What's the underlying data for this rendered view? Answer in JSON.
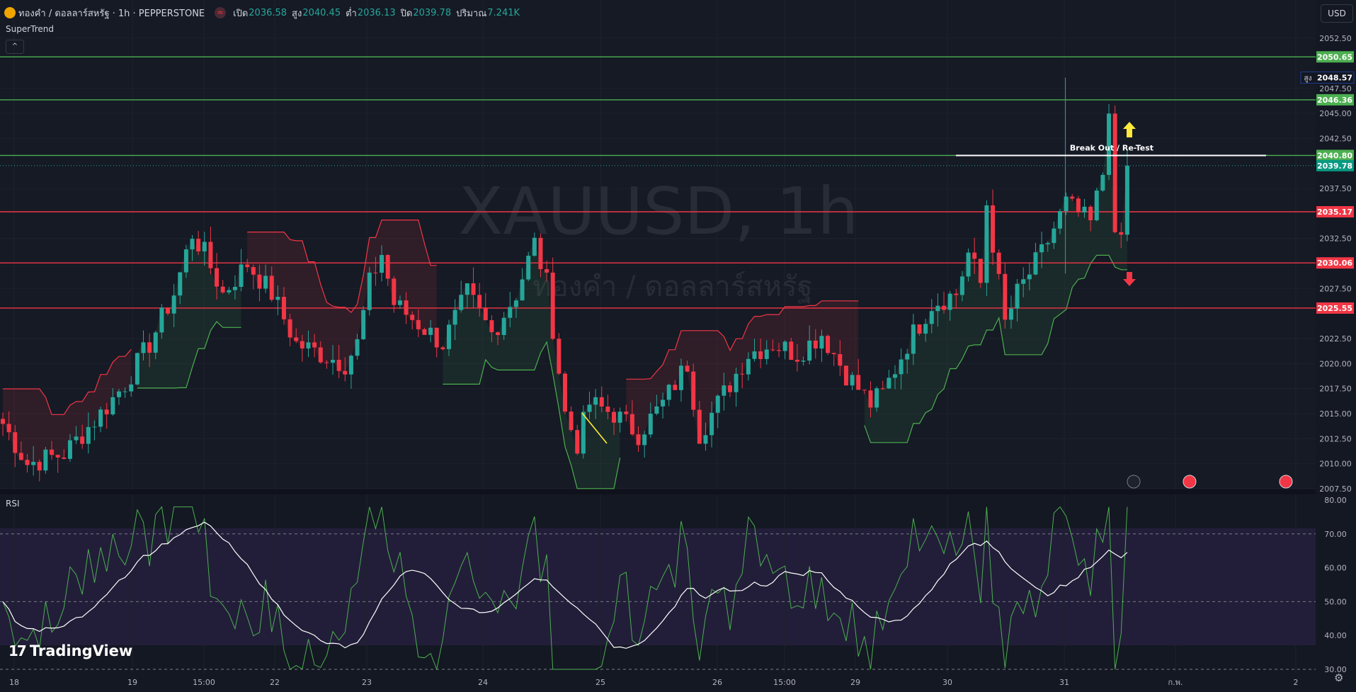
{
  "header": {
    "title": "ทองคำ / ดอลลาร์สหรัฐ · 1h · PEPPERSTONE",
    "wave_icon": "≈",
    "ohlc": [
      {
        "label": "เปิด",
        "value": "2036.58"
      },
      {
        "label": "สูง",
        "value": "2040.45"
      },
      {
        "label": "ต่ำ",
        "value": "2036.13"
      },
      {
        "label": "ปิด",
        "value": "2039.78"
      },
      {
        "label": "ปริมาณ",
        "value": "7.241K"
      }
    ]
  },
  "indicator_label": "SuperTrend",
  "collapse_icon": "^",
  "rsi_label": "RSI",
  "currency": "USD",
  "watermark": {
    "line1": "XAUUSD, 1h",
    "line2": "ทองคำ / ดอลลาร์สหรัฐ"
  },
  "logo": {
    "mark": "17",
    "text": "TradingView"
  },
  "settings_icon": "⚙",
  "colors": {
    "bg": "#141823",
    "up": "#26a69a",
    "down": "#f23645",
    "support": "#4caf50",
    "resistance": "#f23645",
    "annotation": "#ffffff",
    "arrow_up": "#ffeb3b"
  },
  "chart_data": {
    "type": "candlestick",
    "symbol": "XAUUSD",
    "timeframe": "1h",
    "y_ticks": [
      "2052.50",
      "2047.50",
      "2045.00",
      "2042.50",
      "2037.50",
      "2032.50",
      "2027.50",
      "2022.50",
      "2020.00",
      "2017.50",
      "2015.00",
      "2012.50",
      "2010.00",
      "2007.50"
    ],
    "ylim": [
      2007.5,
      2053.5
    ],
    "x_ticks": [
      "18",
      "19",
      "15:00",
      "22",
      "23",
      "24",
      "25",
      "26",
      "15:00",
      "29",
      "30",
      "31",
      "ก.พ.",
      "2"
    ],
    "horizontal_levels": [
      {
        "price": 2050.65,
        "label": "2050.65",
        "color": "#4caf50"
      },
      {
        "price": 2046.36,
        "label": "2046.36",
        "color": "#4caf50"
      },
      {
        "price": 2040.8,
        "label": "2040.80",
        "color": "#4caf50"
      },
      {
        "price": 2035.17,
        "label": "2035.17",
        "color": "#f23645"
      },
      {
        "price": 2030.06,
        "label": "2030.06",
        "color": "#f23645"
      },
      {
        "price": 2025.55,
        "label": "2025.55",
        "color": "#f23645"
      }
    ],
    "high_label": {
      "prefix": "สูง",
      "value": "2048.57"
    },
    "last_price": "2039.78",
    "annotation": {
      "text": "Break Out / Re-Test",
      "price": 2040.8
    },
    "rsi": {
      "ylim": [
        30,
        80
      ],
      "ticks": [
        "80.00",
        "70.00",
        "60.00",
        "50.00",
        "40.00",
        "30.00"
      ],
      "band": [
        30,
        70
      ]
    },
    "supertrend_segments": [
      {
        "trend": "down",
        "start": 0,
        "end": 21
      },
      {
        "trend": "up",
        "start": 22,
        "end": 39
      },
      {
        "trend": "down",
        "start": 40,
        "end": 71
      },
      {
        "trend": "up",
        "start": 72,
        "end": 101
      },
      {
        "trend": "down",
        "start": 102,
        "end": 140
      },
      {
        "trend": "up",
        "start": 141,
        "end": 184
      }
    ]
  }
}
